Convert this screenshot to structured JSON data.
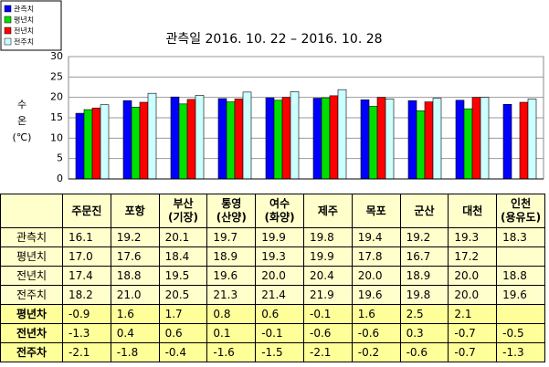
{
  "chart_data": {
    "type": "bar",
    "title": "관측일 2016. 10. 22 – 2016. 10. 28",
    "y_label_lines": [
      "수",
      "온",
      "(℃)"
    ],
    "categories": [
      "주문진",
      "포항",
      "부산\n(기장)",
      "통영\n(산양)",
      "여수\n(화양)",
      "제주",
      "목포",
      "군산",
      "대천",
      "인천\n(용유도)"
    ],
    "series": [
      {
        "name": "관측치",
        "color": "#0000ff",
        "values": [
          16.1,
          19.2,
          20.1,
          19.7,
          19.9,
          19.8,
          19.4,
          19.2,
          19.3,
          18.3
        ],
        "value_labels": [
          "16.1",
          "19.2",
          "20.1",
          "19.7",
          "19.9",
          "19.8",
          "19.4",
          "19.2",
          "19.3",
          "18.3"
        ]
      },
      {
        "name": "평년치",
        "color": "#00e000",
        "values": [
          17.0,
          17.6,
          18.4,
          18.9,
          19.3,
          19.9,
          17.8,
          16.7,
          17.2,
          null
        ],
        "value_labels": [
          "17.0",
          "17.6",
          "18.4",
          "18.9",
          "19.3",
          "19.9",
          "17.8",
          "16.7",
          "17.2",
          null
        ]
      },
      {
        "name": "전년치",
        "color": "#ff0000",
        "values": [
          17.4,
          18.8,
          19.5,
          19.6,
          20.0,
          20.4,
          20.0,
          18.9,
          20.0,
          18.8
        ],
        "value_labels": [
          "17.4",
          "18.8",
          "19.5",
          "19.6",
          "20.0",
          "20.4",
          "20.0",
          "18.9",
          "20.0",
          "18.8"
        ]
      },
      {
        "name": "전주치",
        "color": "#ccffff",
        "values": [
          18.2,
          21.0,
          20.5,
          21.3,
          21.4,
          21.9,
          19.6,
          19.8,
          20.0,
          19.6
        ],
        "value_labels": [
          "18.2",
          "21.0",
          "20.5",
          "21.3",
          "21.4",
          "21.9",
          "19.6",
          "19.8",
          "20.0",
          "19.6"
        ]
      }
    ],
    "ylim": [
      0,
      30
    ],
    "yticks": [
      0,
      5,
      10,
      15,
      20,
      25,
      30
    ],
    "grid": true,
    "legend": "top-left"
  },
  "table": {
    "differences": [
      {
        "name": "평년차",
        "values": [
          -0.9,
          1.6,
          1.7,
          0.8,
          0.6,
          -0.1,
          1.6,
          2.5,
          2.1,
          null
        ]
      },
      {
        "name": "전년차",
        "values": [
          -1.3,
          0.4,
          0.6,
          0.1,
          -0.1,
          -0.6,
          -0.6,
          0.3,
          -0.7,
          -0.5
        ]
      },
      {
        "name": "전주차",
        "values": [
          -2.1,
          -1.8,
          -0.4,
          -1.6,
          -1.5,
          -2.1,
          -0.2,
          -0.6,
          -0.7,
          -1.3
        ]
      }
    ]
  }
}
